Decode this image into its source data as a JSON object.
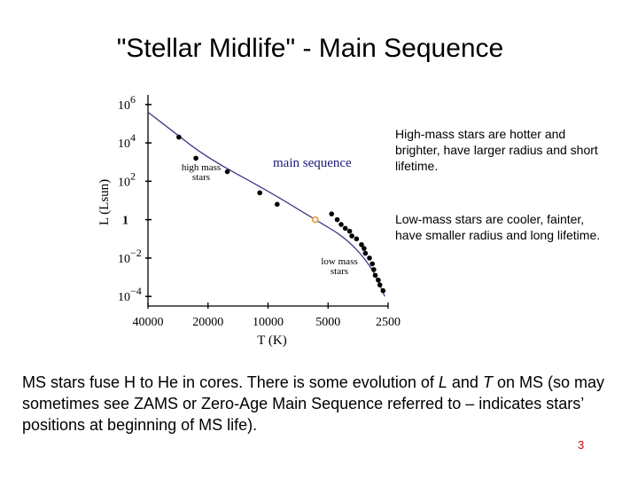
{
  "slide": {
    "title": "\"Stellar Midlife\" - Main Sequence",
    "note_high_mass": "High-mass stars are hotter and brighter, have larger radius and short lifetime.",
    "note_low_mass": "Low-mass stars are cooler, fainter, have smaller radius and long lifetime.",
    "body_parts": [
      "MS stars fuse H to He in cores.  There is some evolution of ",
      "L",
      " and ",
      "T",
      " on MS (so may sometimes see ZAMS or Zero-Age Main Sequence referred to – indicates stars’ positions at beginning of MS life)."
    ],
    "page_number": "3"
  },
  "chart_data": {
    "type": "scatter",
    "title": "",
    "xlabel": "T (K)",
    "ylabel": "L (Lsun)",
    "x_scale": "reversed-log",
    "y_scale": "log10",
    "xlim": [
      40000,
      2500
    ],
    "ylim_log10": [
      -4.5,
      6.5
    ],
    "x_tick_labels": [
      "40000",
      "20000",
      "10000",
      "5000",
      "2500"
    ],
    "x_tick_values": [
      40000,
      20000,
      10000,
      5000,
      2500
    ],
    "y_ticks": [
      {
        "base": "10",
        "exp": "6",
        "log": 6
      },
      {
        "base": "10",
        "exp": "4",
        "log": 4
      },
      {
        "base": "10",
        "exp": "2",
        "log": 2
      },
      {
        "base": "1",
        "exp": "",
        "log": 0
      },
      {
        "base": "10",
        "exp": "−2",
        "log": -2
      },
      {
        "base": "10",
        "exp": "−4",
        "log": -4
      }
    ],
    "series": [
      {
        "name": "main sequence stars",
        "color": "#000000",
        "points": [
          {
            "T": 28000,
            "logL": 4.3
          },
          {
            "T": 23000,
            "logL": 3.2
          },
          {
            "T": 16000,
            "logL": 2.5
          },
          {
            "T": 11000,
            "logL": 1.4
          },
          {
            "T": 9000,
            "logL": 0.8
          },
          {
            "T": 4800,
            "logL": 0.3
          },
          {
            "T": 4500,
            "logL": 0.0
          },
          {
            "T": 4300,
            "logL": -0.25
          },
          {
            "T": 4100,
            "logL": -0.45
          },
          {
            "T": 3900,
            "logL": -0.6
          },
          {
            "T": 3800,
            "logL": -0.85
          },
          {
            "T": 3600,
            "logL": -1.0
          },
          {
            "T": 3400,
            "logL": -1.3
          },
          {
            "T": 3300,
            "logL": -1.5
          },
          {
            "T": 3250,
            "logL": -1.75
          },
          {
            "T": 3100,
            "logL": -2.0
          },
          {
            "T": 3000,
            "logL": -2.3
          },
          {
            "T": 2950,
            "logL": -2.6
          },
          {
            "T": 2900,
            "logL": -2.9
          },
          {
            "T": 2800,
            "logL": -3.15
          },
          {
            "T": 2750,
            "logL": -3.4
          },
          {
            "T": 2650,
            "logL": -3.7
          }
        ]
      },
      {
        "name": "Sun",
        "color": "#e8a040",
        "points": [
          {
            "T": 5800,
            "logL": 0.0
          }
        ]
      }
    ],
    "main_sequence_curve": [
      {
        "T": 40000,
        "logL": 5.6
      },
      {
        "T": 30000,
        "logL": 4.6
      },
      {
        "T": 20000,
        "logL": 3.2
      },
      {
        "T": 10000,
        "logL": 1.5
      },
      {
        "T": 5800,
        "logL": 0.0
      },
      {
        "T": 4000,
        "logL": -1.0
      },
      {
        "T": 3000,
        "logL": -2.5
      },
      {
        "T": 2600,
        "logL": -4.0
      }
    ],
    "annotations": [
      {
        "text": "main sequence",
        "color": "#1a1a7a"
      },
      {
        "text_lines": [
          "high mass",
          "stars"
        ]
      },
      {
        "text_lines": [
          "low mass",
          "stars"
        ]
      }
    ]
  }
}
